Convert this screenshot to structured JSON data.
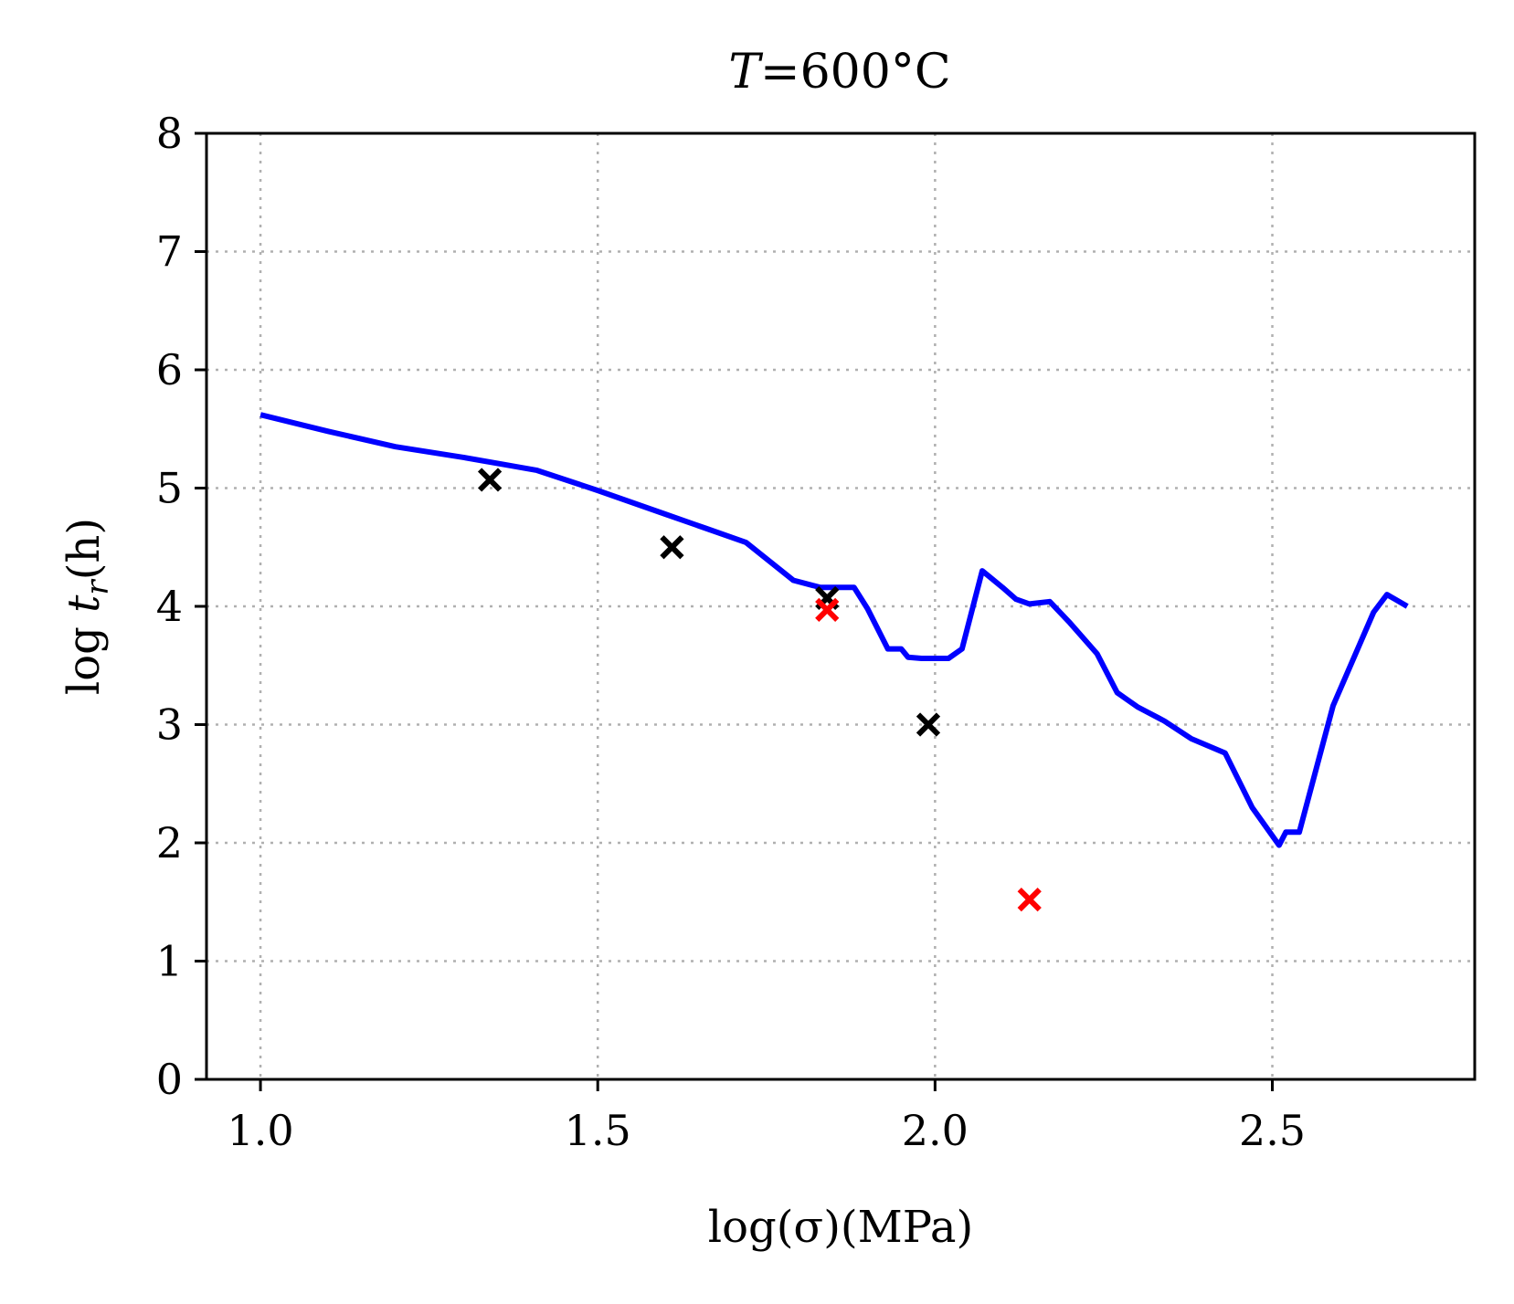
{
  "chart_data": {
    "type": "line",
    "title": "T=600°C",
    "title_parts": {
      "var": "T",
      "rest": "=600°C"
    },
    "xlabel": "log(σ)(MPa)",
    "ylabel": "log t_r(h)",
    "ylabel_parts": {
      "pre": "log ",
      "var": "t",
      "sub": "r",
      "post": "(h)"
    },
    "xlim": [
      0.92,
      2.8
    ],
    "ylim": [
      0,
      8
    ],
    "x_ticks": [
      1.0,
      1.5,
      2.0,
      2.5
    ],
    "x_tick_labels": [
      "1.0",
      "1.5",
      "2.0",
      "2.5"
    ],
    "y_ticks": [
      0,
      1,
      2,
      3,
      4,
      5,
      6,
      7,
      8
    ],
    "y_tick_labels": [
      "0",
      "1",
      "2",
      "3",
      "4",
      "5",
      "6",
      "7",
      "8"
    ],
    "grid": true,
    "grid_style": "dotted",
    "legend": false,
    "series": [
      {
        "type": "line",
        "color": "#0000ff",
        "x": [
          1.0,
          1.1,
          1.2,
          1.3,
          1.36,
          1.41,
          1.5,
          1.6,
          1.66,
          1.72,
          1.79,
          1.83,
          1.88,
          1.9,
          1.93,
          1.95,
          1.96,
          1.98,
          2.02,
          2.04,
          2.07,
          2.1,
          2.12,
          2.14,
          2.17,
          2.2,
          2.24,
          2.27,
          2.3,
          2.34,
          2.38,
          2.43,
          2.47,
          2.51,
          2.52,
          2.54,
          2.59,
          2.65,
          2.67,
          2.7
        ],
        "y": [
          5.62,
          5.48,
          5.35,
          5.26,
          5.2,
          5.15,
          4.98,
          4.78,
          4.66,
          4.54,
          4.22,
          4.16,
          4.16,
          3.98,
          3.64,
          3.64,
          3.57,
          3.56,
          3.56,
          3.64,
          4.3,
          4.16,
          4.06,
          4.02,
          4.04,
          3.86,
          3.6,
          3.27,
          3.15,
          3.03,
          2.88,
          2.76,
          2.3,
          1.98,
          2.09,
          2.09,
          3.16,
          3.95,
          4.1,
          4.0
        ]
      },
      {
        "type": "scatter",
        "color": "#000000",
        "marker": "x",
        "x": [
          1.34,
          1.61,
          1.84,
          1.99
        ],
        "y": [
          5.07,
          4.5,
          4.07,
          3.0
        ]
      },
      {
        "type": "scatter",
        "color": "#ff0000",
        "marker": "x",
        "x": [
          1.84,
          2.14
        ],
        "y": [
          3.97,
          1.52
        ]
      }
    ]
  }
}
